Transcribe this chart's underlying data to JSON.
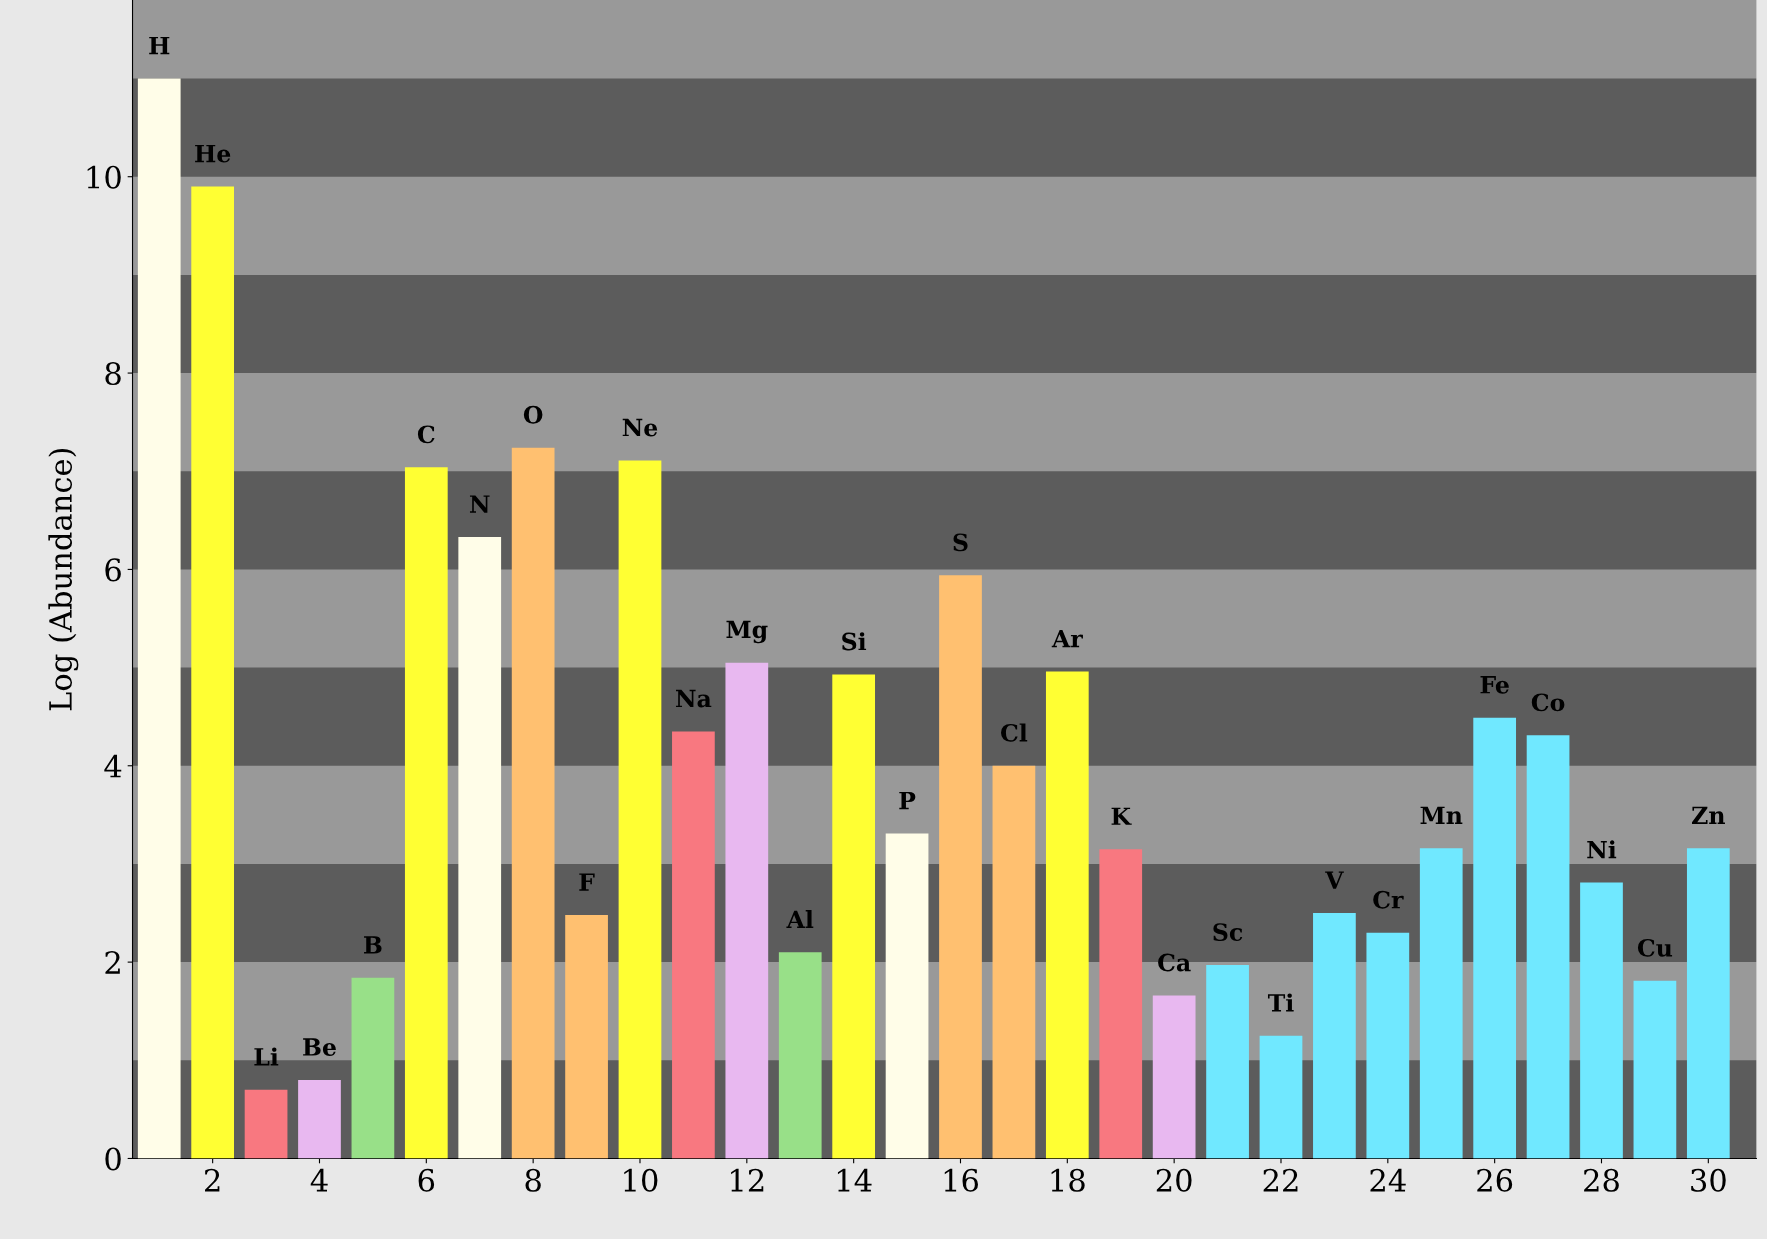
{
  "chart_data": {
    "type": "bar",
    "ylabel": "Log (Abundance)",
    "x": [
      1,
      2,
      3,
      4,
      5,
      6,
      7,
      8,
      9,
      10,
      11,
      12,
      13,
      14,
      15,
      16,
      17,
      18,
      19,
      20,
      21,
      22,
      23,
      24,
      25,
      26,
      27,
      28,
      29,
      30
    ],
    "values": [
      11.0,
      9.9,
      0.7,
      0.8,
      1.84,
      7.04,
      6.33,
      7.24,
      2.48,
      7.11,
      4.35,
      5.05,
      2.1,
      4.93,
      3.31,
      5.94,
      4.0,
      4.96,
      3.15,
      1.66,
      1.97,
      1.25,
      2.5,
      2.3,
      3.16,
      4.49,
      4.31,
      2.81,
      1.81,
      3.16
    ],
    "value_labels": [
      "H",
      "He",
      "Li",
      "Be",
      "B",
      "C",
      "N",
      "O",
      "F",
      "Ne",
      "Na",
      "Mg",
      "Al",
      "Si",
      "P",
      "S",
      "Cl",
      "Ar",
      "K",
      "Ca",
      "Sc",
      "Ti",
      "V",
      "Cr",
      "Mn",
      "Fe",
      "Co",
      "Ni",
      "Cu",
      "Zn"
    ],
    "colors": [
      "#fffde8",
      "#ffff33",
      "#f87880",
      "#e8b8f0",
      "#98e088",
      "#ffff33",
      "#fffde8",
      "#ffc070",
      "#ffc070",
      "#ffff33",
      "#f87880",
      "#e8b8f0",
      "#98e088",
      "#ffff33",
      "#fffde8",
      "#ffc070",
      "#ffc070",
      "#ffff33",
      "#f87880",
      "#e8b8f0",
      "#70e8ff",
      "#70e8ff",
      "#70e8ff",
      "#70e8ff",
      "#70e8ff",
      "#70e8ff",
      "#70e8ff",
      "#70e8ff",
      "#70e8ff",
      "#70e8ff"
    ],
    "xlim": [
      0.5,
      30.9
    ],
    "ylim": [
      0,
      11.8
    ],
    "xticks": [
      2,
      4,
      6,
      8,
      10,
      12,
      14,
      16,
      18,
      20,
      22,
      24,
      26,
      28,
      30
    ],
    "yticks": [
      0,
      2,
      4,
      6,
      8,
      10
    ],
    "bands": [
      {
        "axis": "y",
        "from": 0,
        "to": 1,
        "color": "#5c5c5c"
      },
      {
        "axis": "y",
        "from": 2,
        "to": 3,
        "color": "#5c5c5c"
      },
      {
        "axis": "y",
        "from": 4,
        "to": 5,
        "color": "#5c5c5c"
      },
      {
        "axis": "y",
        "from": 6,
        "to": 7,
        "color": "#5c5c5c"
      },
      {
        "axis": "y",
        "from": 8,
        "to": 9,
        "color": "#5c5c5c"
      },
      {
        "axis": "y",
        "from": 10,
        "to": 11,
        "color": "#5c5c5c"
      }
    ],
    "grid": false
  }
}
